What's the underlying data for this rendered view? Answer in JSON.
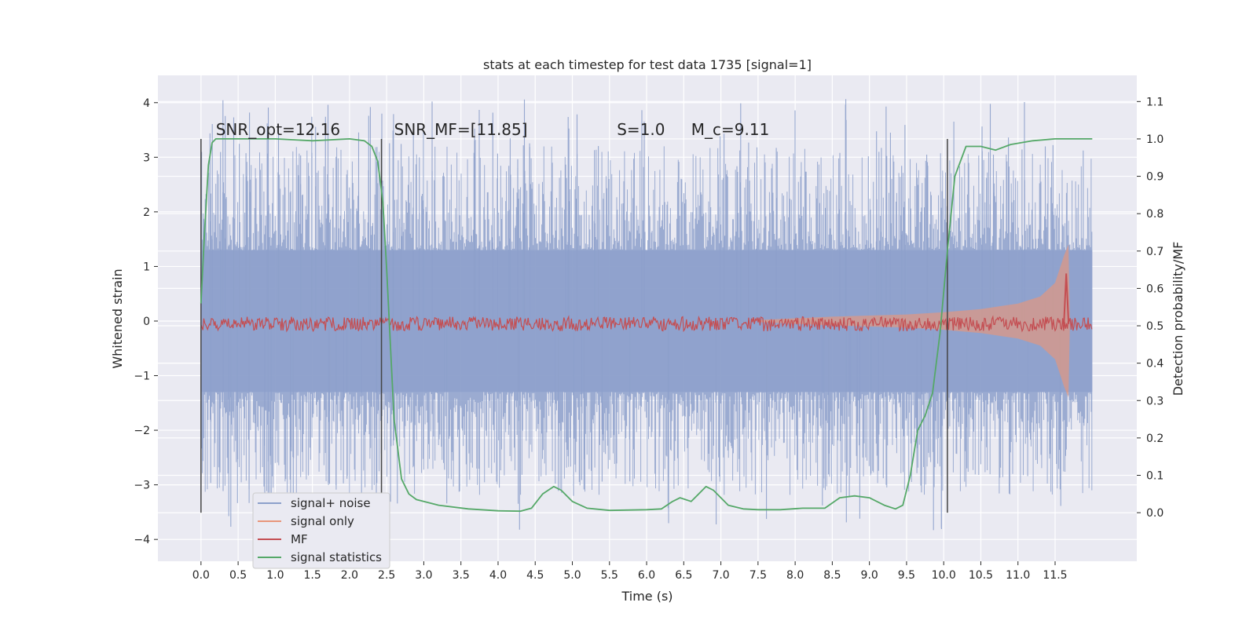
{
  "chart_data": {
    "type": "line",
    "title": "stats at each timestep for test data 1735 [signal=1]",
    "xlabel": "Time (s)",
    "ylabel": "Whitened strain",
    "y2label": "Detection probability/MF",
    "xlim": [
      -0.58,
      12.6
    ],
    "ylim": [
      -4.4,
      4.5
    ],
    "y2lim": [
      -0.13,
      1.17
    ],
    "x_ticks": [
      "0.0",
      "0.5",
      "1.0",
      "1.5",
      "2.0",
      "2.5",
      "3.0",
      "3.5",
      "4.0",
      "4.5",
      "5.0",
      "5.5",
      "6.0",
      "6.5",
      "7.0",
      "7.5",
      "8.0",
      "8.5",
      "9.0",
      "9.5",
      "10.0",
      "10.5",
      "11.0",
      "11.5"
    ],
    "y_ticks": [
      "4",
      "3",
      "2",
      "1",
      "0",
      "−1",
      "−2",
      "−3",
      "−4"
    ],
    "y2_ticks": [
      "1.1",
      "1.0",
      "0.9",
      "0.8",
      "0.7",
      "0.6",
      "0.5",
      "0.4",
      "0.3",
      "0.2",
      "0.1",
      "0.0"
    ],
    "grid": true,
    "legend_position": "lower-left",
    "annotations": [
      {
        "text": "SNR_opt=12.16",
        "x": 0.2,
        "y2": 1.01
      },
      {
        "text": "SNR_MF=[11.85]",
        "x": 2.6,
        "y2": 1.01
      },
      {
        "text": "S=1.0",
        "x": 5.6,
        "y2": 1.01
      },
      {
        "text": "M_c=9.11",
        "x": 6.6,
        "y2": 1.01
      }
    ],
    "vlines": [
      {
        "x": 0.0,
        "y2_range": [
          0.0,
          1.0
        ]
      },
      {
        "x": 2.43,
        "y2_range": [
          0.0,
          1.0
        ]
      },
      {
        "x": 10.05,
        "y2_range": [
          0.0,
          1.0
        ]
      }
    ],
    "series": [
      {
        "name": "signal+ noise",
        "color": "#8da0cb",
        "axis": "left",
        "x_range": [
          0.0,
          12.0
        ],
        "mean": 0.0,
        "core_amplitude": 1.3,
        "peak_range": [
          3.2,
          4.1
        ]
      },
      {
        "name": "signal only",
        "color": "#e8967a",
        "axis": "left",
        "x_range": [
          7.5,
          11.7
        ],
        "envelope": [
          [
            7.5,
            0.02
          ],
          [
            8.5,
            0.08
          ],
          [
            9.5,
            0.12
          ],
          [
            10.0,
            0.16
          ],
          [
            10.5,
            0.22
          ],
          [
            11.0,
            0.32
          ],
          [
            11.3,
            0.45
          ],
          [
            11.5,
            0.7
          ],
          [
            11.62,
            1.2
          ],
          [
            11.68,
            1.4
          ],
          [
            11.7,
            0.0
          ]
        ]
      },
      {
        "name": "MF",
        "color": "#c44e52",
        "axis": "right",
        "x_range": [
          0.0,
          12.0
        ],
        "base": 0.505,
        "noise": 0.012,
        "peak": {
          "x": 11.65,
          "y": 0.64
        }
      },
      {
        "name": "signal statistics",
        "color": "#55a868",
        "axis": "right",
        "points": [
          [
            0.0,
            0.56
          ],
          [
            0.05,
            0.76
          ],
          [
            0.1,
            0.93
          ],
          [
            0.15,
            0.99
          ],
          [
            0.2,
            1.0
          ],
          [
            0.5,
            1.0
          ],
          [
            1.0,
            1.0
          ],
          [
            1.5,
            0.995
          ],
          [
            2.0,
            1.0
          ],
          [
            2.2,
            0.995
          ],
          [
            2.3,
            0.98
          ],
          [
            2.38,
            0.94
          ],
          [
            2.45,
            0.83
          ],
          [
            2.5,
            0.65
          ],
          [
            2.55,
            0.45
          ],
          [
            2.6,
            0.25
          ],
          [
            2.7,
            0.09
          ],
          [
            2.8,
            0.05
          ],
          [
            2.9,
            0.035
          ],
          [
            3.2,
            0.02
          ],
          [
            3.6,
            0.01
          ],
          [
            4.0,
            0.005
          ],
          [
            4.3,
            0.004
          ],
          [
            4.45,
            0.012
          ],
          [
            4.6,
            0.05
          ],
          [
            4.75,
            0.07
          ],
          [
            4.85,
            0.06
          ],
          [
            5.0,
            0.03
          ],
          [
            5.2,
            0.012
          ],
          [
            5.5,
            0.006
          ],
          [
            6.0,
            0.008
          ],
          [
            6.2,
            0.01
          ],
          [
            6.35,
            0.03
          ],
          [
            6.45,
            0.04
          ],
          [
            6.6,
            0.03
          ],
          [
            6.8,
            0.07
          ],
          [
            6.9,
            0.06
          ],
          [
            7.1,
            0.02
          ],
          [
            7.3,
            0.01
          ],
          [
            7.5,
            0.008
          ],
          [
            7.8,
            0.008
          ],
          [
            8.1,
            0.012
          ],
          [
            8.4,
            0.012
          ],
          [
            8.6,
            0.04
          ],
          [
            8.8,
            0.045
          ],
          [
            9.0,
            0.04
          ],
          [
            9.2,
            0.02
          ],
          [
            9.35,
            0.01
          ],
          [
            9.45,
            0.02
          ],
          [
            9.55,
            0.1
          ],
          [
            9.65,
            0.22
          ],
          [
            9.75,
            0.26
          ],
          [
            9.85,
            0.32
          ],
          [
            9.95,
            0.48
          ],
          [
            10.05,
            0.7
          ],
          [
            10.15,
            0.9
          ],
          [
            10.3,
            0.98
          ],
          [
            10.5,
            0.98
          ],
          [
            10.7,
            0.97
          ],
          [
            10.9,
            0.985
          ],
          [
            11.2,
            0.995
          ],
          [
            11.5,
            1.0
          ],
          [
            12.0,
            1.0
          ]
        ]
      }
    ]
  }
}
